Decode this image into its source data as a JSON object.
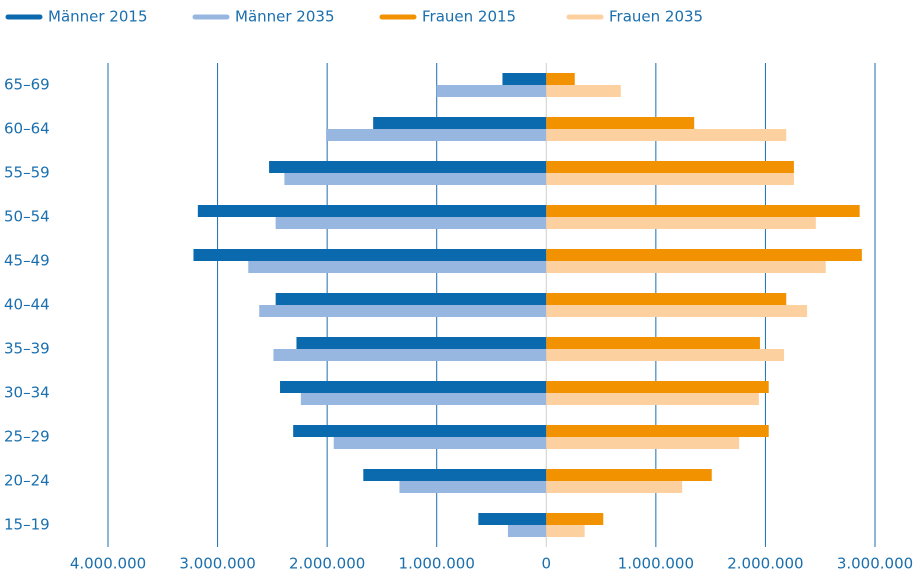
{
  "chart_data": {
    "type": "bar",
    "orientation": "horizontal",
    "categories": [
      "65–69",
      "60–64",
      "55–59",
      "50–54",
      "45–49",
      "40–44",
      "35–39",
      "30–34",
      "25–29",
      "20–24",
      "15–19"
    ],
    "series": [
      {
        "name": "Männer 2015",
        "color": "#0a6aad",
        "values": [
          -400000,
          -1580000,
          -2530000,
          -3180000,
          -3220000,
          -2470000,
          -2280000,
          -2430000,
          -2310000,
          -1670000,
          -620000
        ]
      },
      {
        "name": "Männer 2035",
        "color": "#98b7e0",
        "values": [
          -1000000,
          -2010000,
          -2390000,
          -2470000,
          -2720000,
          -2620000,
          -2490000,
          -2240000,
          -1940000,
          -1340000,
          -350000
        ]
      },
      {
        "name": "Frauen 2015",
        "color": "#f39200",
        "values": [
          260000,
          1350000,
          2260000,
          2860000,
          2880000,
          2190000,
          1950000,
          2030000,
          2030000,
          1510000,
          520000
        ]
      },
      {
        "name": "Frauen 2035",
        "color": "#fdd0a0",
        "values": [
          680000,
          2190000,
          2260000,
          2460000,
          2550000,
          2380000,
          2170000,
          1940000,
          1760000,
          1240000,
          350000
        ]
      }
    ],
    "xlim": [
      -4000000,
      3000000
    ],
    "xticks": [
      {
        "value": -4000000,
        "label": "4.000.000"
      },
      {
        "value": -3000000,
        "label": "3.000.000"
      },
      {
        "value": -2000000,
        "label": "2.000.000"
      },
      {
        "value": -1000000,
        "label": "1.000.000"
      },
      0,
      {
        "value": 1000000,
        "label": "1.000.000"
      },
      {
        "value": 2000000,
        "label": "2.000.000"
      },
      {
        "value": 3000000,
        "label": "3.000.000"
      }
    ],
    "grid": true,
    "legend": "top"
  }
}
